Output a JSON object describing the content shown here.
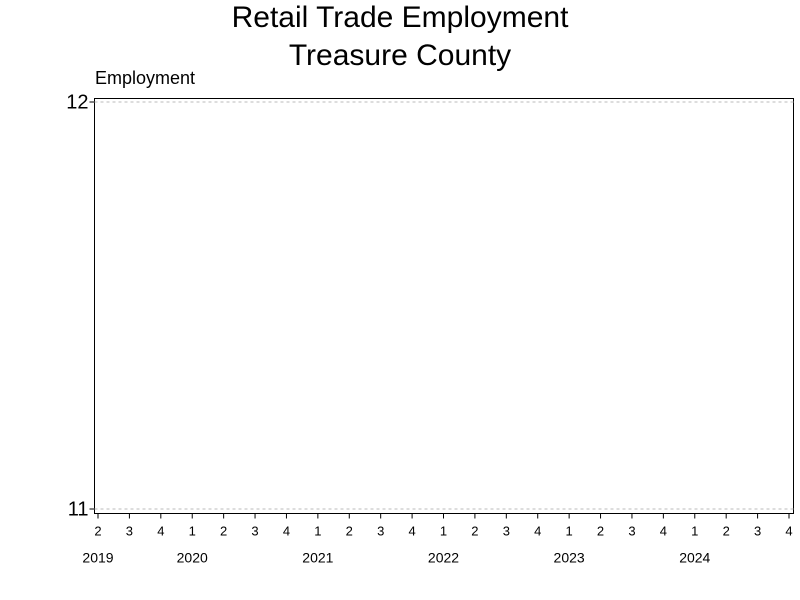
{
  "chart_data": {
    "type": "line",
    "title": "Retail Trade Employment",
    "subtitle": "Treasure County",
    "y_label": "Employment",
    "categories": [
      "2",
      "3",
      "4",
      "1",
      "2",
      "3",
      "4",
      "1",
      "2",
      "3",
      "4",
      "1",
      "2",
      "3",
      "4",
      "1",
      "2",
      "3",
      "4",
      "1",
      "2",
      "3",
      "4"
    ],
    "category_groups": [
      "2019",
      null,
      null,
      "2020",
      null,
      null,
      null,
      "2021",
      null,
      null,
      null,
      "2022",
      null,
      null,
      null,
      "2023",
      null,
      null,
      null,
      "2024",
      null,
      null,
      null
    ],
    "values": [
      null,
      null,
      null,
      null,
      null,
      null,
      null,
      null,
      null,
      null,
      null,
      null,
      null,
      null,
      null,
      null,
      null,
      null,
      null,
      null,
      null,
      null,
      null
    ],
    "color": "#1f3f8f",
    "ylim": [
      11,
      12
    ],
    "yticks": [
      11,
      12
    ],
    "grid": true
  }
}
